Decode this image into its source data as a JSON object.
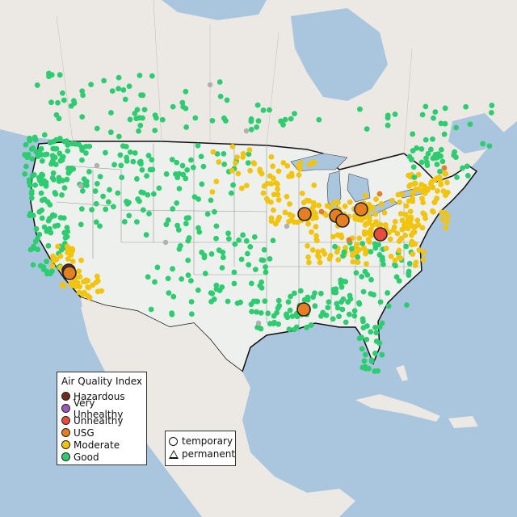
{
  "colors": {
    "water": "#a9c6de",
    "land": "#eef0ee",
    "land_foreign": "#e9e8e3",
    "good": "#2ecc71",
    "moderate": "#f1c40f",
    "usg": "#e67e22",
    "unhealthy": "#e74c3c",
    "very_unhealthy": "#9b59b6",
    "hazardous": "#6e2c1f",
    "no_data": "#b0b0b0"
  },
  "legend": {
    "title": "Air Quality Index",
    "items": [
      {
        "label": "Hazardous",
        "color": "#6e2c1f"
      },
      {
        "label": "Very Unhealthy",
        "color": "#9b59b6"
      },
      {
        "label": "Unhealthy",
        "color": "#e74c3c"
      },
      {
        "label": "USG",
        "color": "#e67e22"
      },
      {
        "label": "Moderate",
        "color": "#f1c40f"
      },
      {
        "label": "Good",
        "color": "#2ecc71"
      }
    ]
  },
  "shape_legend": {
    "items": [
      {
        "label": "temporary",
        "shape": "circle"
      },
      {
        "label": "permanent",
        "shape": "triangle"
      }
    ]
  }
}
